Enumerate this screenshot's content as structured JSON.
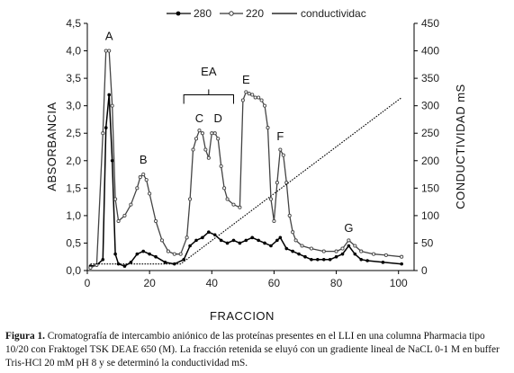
{
  "chart_data": {
    "type": "line",
    "legend": [
      "280",
      "220",
      "conductividac"
    ],
    "legend_position": "top",
    "xlabel": "FRACCION",
    "ylabel_left": "ABSORBANCIA",
    "ylabel_right": "CONDUCTIVIDAD mS",
    "xlim": [
      0,
      105
    ],
    "ylim_left": [
      0,
      4.5
    ],
    "ylim_right": [
      0,
      450
    ],
    "x_ticks": [
      "0",
      "20",
      "40",
      "60",
      "80",
      "100"
    ],
    "y_left_ticks": [
      "0,0",
      "0,5",
      "1,0",
      "1,5",
      "2,0",
      "2,5",
      "3,0",
      "3,5",
      "4,0",
      "4,5"
    ],
    "y_right_ticks": [
      "0",
      "50",
      "100",
      "150",
      "200",
      "250",
      "300",
      "350",
      "400",
      "450"
    ],
    "peak_labels": [
      {
        "text": "A",
        "x": 7,
        "y": 4.2
      },
      {
        "text": "B",
        "x": 18,
        "y": 1.95
      },
      {
        "text": "EA",
        "x": 39,
        "y": 3.55
      },
      {
        "text": "C",
        "x": 36,
        "y": 2.7
      },
      {
        "text": "D",
        "x": 42,
        "y": 2.7
      },
      {
        "text": "E",
        "x": 51,
        "y": 3.4
      },
      {
        "text": "F",
        "x": 62,
        "y": 2.37
      },
      {
        "text": "G",
        "x": 84,
        "y": 0.7
      }
    ],
    "bracket": {
      "x_from": 31,
      "x_to": 47,
      "y": 3.2
    },
    "series": [
      {
        "name": "280",
        "axis": "left",
        "x": [
          1,
          3,
          5,
          6,
          7,
          8,
          9,
          10,
          12,
          14,
          16,
          18,
          20,
          22,
          25,
          28,
          31,
          33,
          35,
          37,
          39,
          41,
          43,
          45,
          47,
          49,
          51,
          53,
          55,
          57,
          59,
          61,
          62,
          64,
          66,
          68,
          70,
          72,
          74,
          76,
          78,
          80,
          82,
          84,
          86,
          88,
          90,
          95,
          101
        ],
        "values": [
          0.08,
          0.1,
          0.2,
          2.6,
          3.2,
          2.0,
          0.3,
          0.12,
          0.08,
          0.15,
          0.3,
          0.35,
          0.3,
          0.25,
          0.15,
          0.12,
          0.2,
          0.45,
          0.55,
          0.6,
          0.7,
          0.65,
          0.55,
          0.5,
          0.55,
          0.5,
          0.55,
          0.6,
          0.55,
          0.5,
          0.45,
          0.55,
          0.6,
          0.4,
          0.35,
          0.3,
          0.25,
          0.2,
          0.2,
          0.2,
          0.2,
          0.25,
          0.3,
          0.45,
          0.3,
          0.2,
          0.18,
          0.15,
          0.12
        ]
      },
      {
        "name": "220",
        "axis": "left",
        "x": [
          1,
          3,
          5,
          6,
          7,
          8,
          9,
          10,
          12,
          14,
          16,
          17,
          18,
          19,
          20,
          22,
          24,
          26,
          28,
          30,
          32,
          33,
          34,
          35,
          36,
          37,
          38,
          39,
          40,
          41,
          42,
          43,
          44,
          45,
          47,
          49,
          50,
          51,
          52,
          53,
          54,
          55,
          56,
          57,
          58,
          59,
          60,
          61,
          62,
          63,
          64,
          65,
          66,
          67,
          69,
          72,
          76,
          80,
          82,
          84,
          86,
          88,
          92,
          96,
          101
        ],
        "values": [
          0.05,
          0.1,
          2.5,
          4.0,
          4.0,
          3.0,
          1.3,
          0.9,
          1.0,
          1.2,
          1.5,
          1.7,
          1.75,
          1.65,
          1.4,
          0.9,
          0.55,
          0.35,
          0.3,
          0.3,
          0.6,
          1.3,
          2.2,
          2.4,
          2.55,
          2.5,
          2.2,
          2.05,
          2.5,
          2.5,
          2.4,
          1.9,
          1.5,
          1.3,
          1.2,
          1.15,
          3.1,
          3.25,
          3.22,
          3.2,
          3.15,
          3.15,
          3.1,
          3.0,
          2.6,
          1.3,
          0.9,
          1.6,
          2.2,
          2.1,
          1.6,
          1.0,
          0.7,
          0.55,
          0.45,
          0.4,
          0.35,
          0.35,
          0.4,
          0.55,
          0.45,
          0.35,
          0.3,
          0.28,
          0.25
        ]
      },
      {
        "name": "conductividac",
        "axis": "right",
        "x": [
          1,
          30,
          101
        ],
        "values": [
          12,
          12,
          315
        ]
      }
    ]
  },
  "caption": {
    "label": "Figura 1.",
    "text": " Cromatografía de intercambio aniónico de las proteínas presentes en el LLI en una columna Pharmacia tipo 10/20 con Fraktogel TSK DEAE 650 (M). La fracción retenida se eluyó con un gradiente lineal de NaCL 0-1 M en buffer Tris-HCl 20 mM pH 8 y se determinó la conductividad mS."
  }
}
